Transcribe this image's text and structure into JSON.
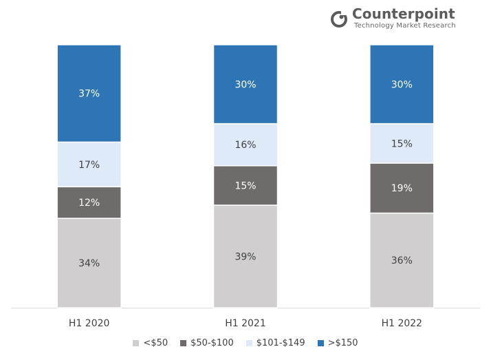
{
  "logo": {
    "name": "Counterpoint",
    "tagline": "Technology Market Research"
  },
  "chart_data": {
    "type": "bar",
    "stacked": true,
    "percent_stacked": true,
    "categories": [
      "H1 2020",
      "H1 2021",
      "H1 2022"
    ],
    "series": [
      {
        "name": "<$50",
        "values": [
          34,
          39,
          36
        ],
        "labels": [
          "34%",
          "39%",
          "36%"
        ],
        "color": "#d0cece",
        "label_color": "#404040"
      },
      {
        "name": "$50-$100",
        "values": [
          12,
          15,
          19
        ],
        "labels": [
          "12%",
          "15%",
          "19%"
        ],
        "color": "#6f6b6b",
        "label_color": "#ffffff"
      },
      {
        "name": "$101-$149",
        "values": [
          17,
          16,
          15
        ],
        "labels": [
          "17%",
          "16%",
          "15%"
        ],
        "color": "#deeaf7",
        "label_color": "#404040"
      },
      {
        "name": ">$150",
        "values": [
          37,
          30,
          30
        ],
        "labels": [
          "37%",
          "30%",
          "30%"
        ],
        "color": "#2e75b6",
        "label_color": "#ffffff"
      }
    ],
    "ylim": [
      0,
      100
    ],
    "grid": false,
    "legend_position": "bottom"
  }
}
